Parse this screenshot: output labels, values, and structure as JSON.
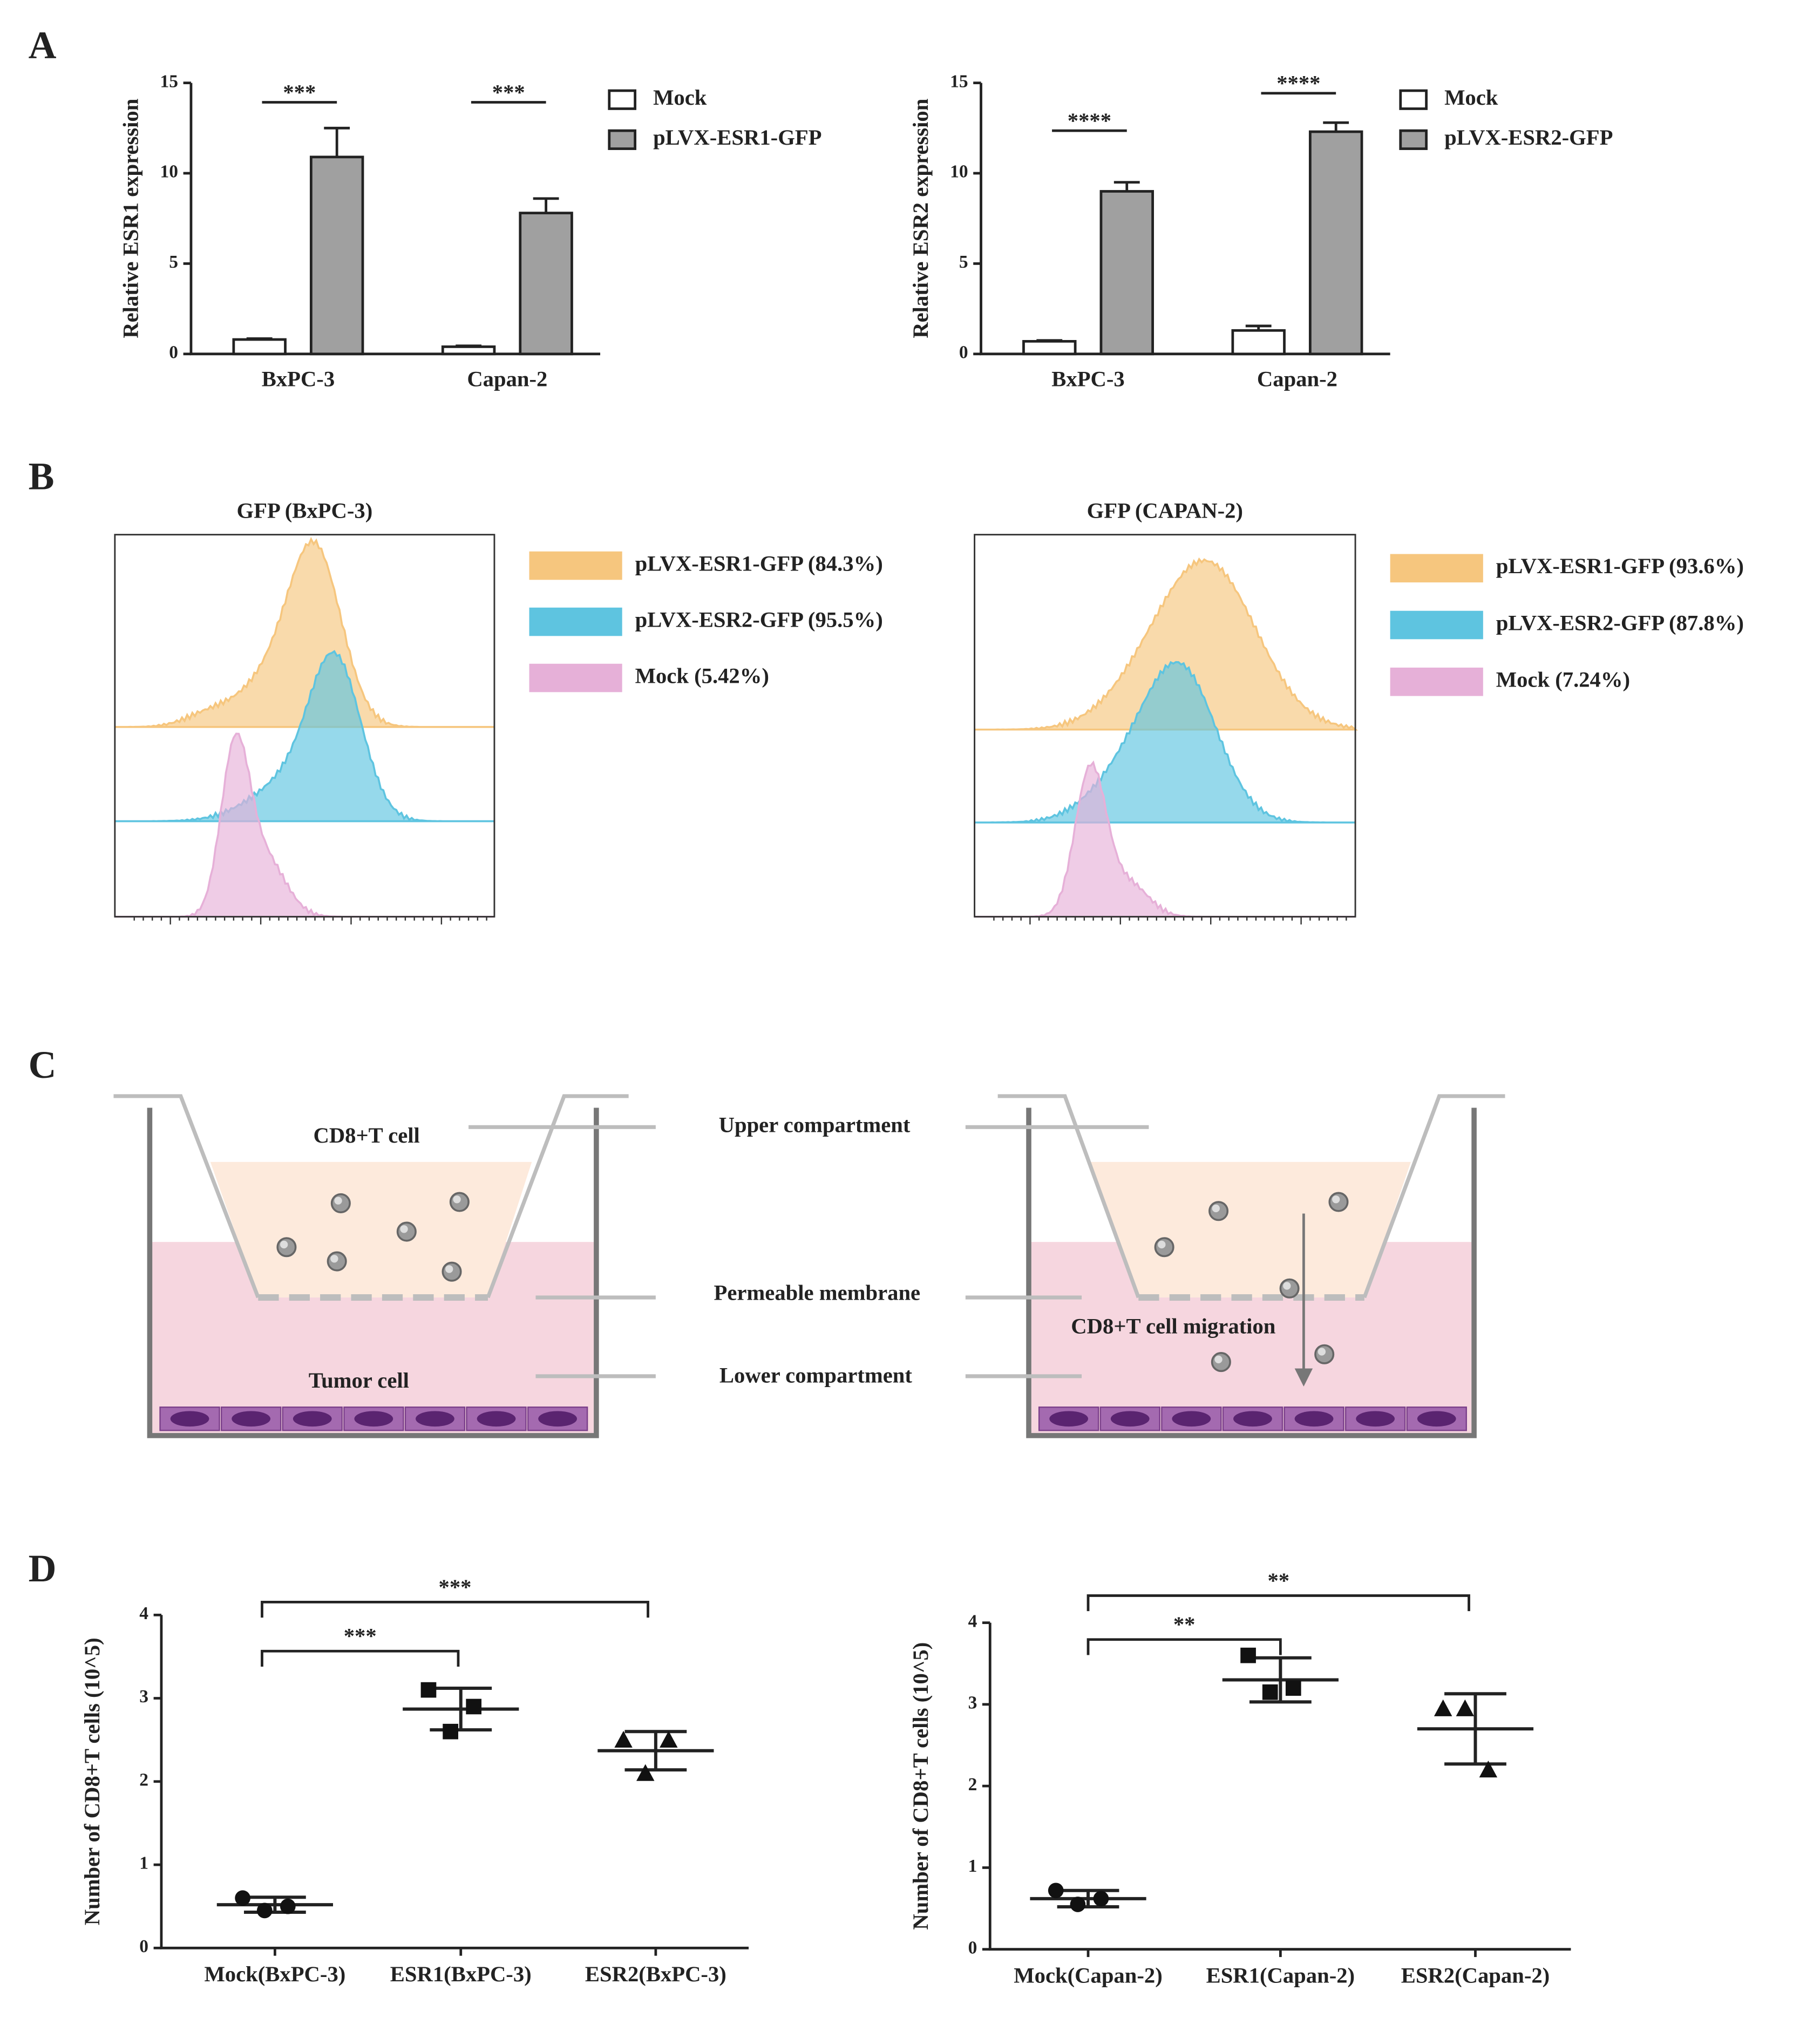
{
  "panel_labels": [
    "A",
    "B",
    "C",
    "D"
  ],
  "chart_data": [
    {
      "type": "bar",
      "ylabel": "Relative ESR1 expression",
      "categories": [
        "BxPC-3",
        "Capan-2"
      ],
      "series": [
        {
          "name": "Mock",
          "color": "#ffffff",
          "values": [
            0.8,
            0.4
          ],
          "errors": [
            0.05,
            0.05
          ]
        },
        {
          "name": "pLVX-ESR1-GFP",
          "color": "#a0a0a0",
          "values": [
            10.9,
            7.8
          ],
          "errors": [
            1.6,
            0.8
          ]
        }
      ],
      "ylim": [
        0,
        15
      ],
      "yticks": [
        0,
        5,
        10,
        15
      ],
      "annotations": [
        "***",
        "***"
      ]
    },
    {
      "type": "bar",
      "ylabel": "Relative ESR2 expression",
      "categories": [
        "BxPC-3",
        "Capan-2"
      ],
      "series": [
        {
          "name": "Mock",
          "color": "#ffffff",
          "values": [
            0.7,
            1.3
          ],
          "errors": [
            0.05,
            0.25
          ]
        },
        {
          "name": "pLVX-ESR2-GFP",
          "color": "#a0a0a0",
          "values": [
            9.0,
            12.3
          ],
          "errors": [
            0.5,
            0.5
          ]
        }
      ],
      "ylim": [
        0,
        15
      ],
      "yticks": [
        0,
        5,
        10,
        15
      ],
      "annotations": [
        "****",
        "****"
      ]
    },
    {
      "type": "flow",
      "title": "GFP (BxPC-3)",
      "series": [
        {
          "name": "pLVX-ESR1-GFP (84.3%)",
          "color": "#f6c67e"
        },
        {
          "name": "pLVX-ESR2-GFP (95.5%)",
          "color": "#5ec4e0"
        },
        {
          "name": "Mock (5.42%)",
          "color": "#e6b0d8"
        }
      ]
    },
    {
      "type": "flow",
      "title": "GFP (CAPAN-2)",
      "series": [
        {
          "name": "pLVX-ESR1-GFP (93.6%)",
          "color": "#f6c67e"
        },
        {
          "name": "pLVX-ESR2-GFP (87.8%)",
          "color": "#5ec4e0"
        },
        {
          "name": "Mock (7.24%)",
          "color": "#e6b0d8"
        }
      ]
    },
    {
      "type": "scatter",
      "ylabel": "Number of CD8+T cells (10^5)",
      "categories": [
        "Mock(BxPC-3)",
        "ESR1(BxPC-3)",
        "ESR2(BxPC-3)"
      ],
      "markers": [
        "circle",
        "square",
        "triangle"
      ],
      "values": [
        [
          0.6,
          0.45,
          0.5
        ],
        [
          3.1,
          2.6,
          2.9
        ],
        [
          2.5,
          2.1,
          2.5
        ]
      ],
      "means": [
        0.52,
        2.87,
        2.37
      ],
      "sd": [
        0.09,
        0.25,
        0.23
      ],
      "ylim": [
        0,
        4
      ],
      "yticks": [
        0,
        1,
        2,
        3,
        4
      ],
      "annotations": [
        "***",
        "***"
      ]
    },
    {
      "type": "scatter",
      "ylabel": "Number of CD8+T cells (10^5)",
      "categories": [
        "Mock(Capan-2)",
        "ESR1(Capan-2)",
        "ESR2(Capan-2)"
      ],
      "markers": [
        "circle",
        "square",
        "triangle"
      ],
      "values": [
        [
          0.72,
          0.55,
          0.62
        ],
        [
          3.6,
          3.15,
          3.2
        ],
        [
          2.95,
          2.95,
          2.2
        ]
      ],
      "means": [
        0.62,
        3.3,
        2.7
      ],
      "sd": [
        0.1,
        0.27,
        0.43
      ],
      "ylim": [
        0,
        4
      ],
      "yticks": [
        0,
        1,
        2,
        3,
        4
      ],
      "annotations": [
        "**",
        "**"
      ]
    }
  ],
  "diagram": {
    "left": {
      "top_cells": "CD8+T cell",
      "bottom_cells": "Tumor cell"
    },
    "labels": [
      "Upper compartment",
      "Permeable membrane",
      "Lower compartment"
    ],
    "right": {
      "arrow": "CD8+T cell migration"
    }
  }
}
